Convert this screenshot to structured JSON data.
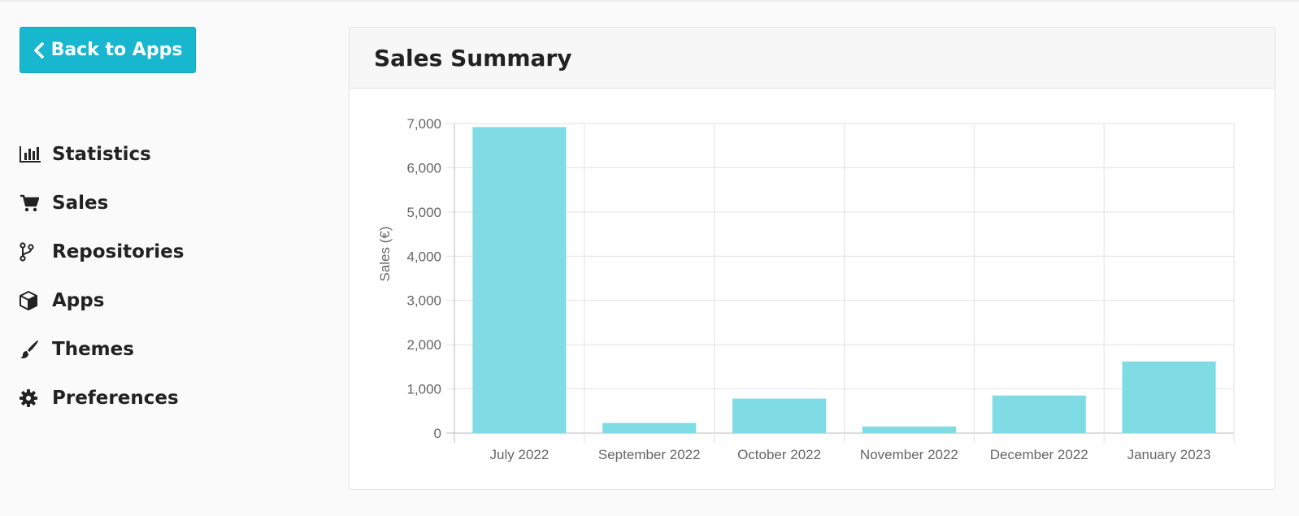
{
  "nav": {
    "back_label": "Back to Apps",
    "items": [
      {
        "label": "Statistics",
        "icon": "bar-chart-icon"
      },
      {
        "label": "Sales",
        "icon": "cart-icon"
      },
      {
        "label": "Repositories",
        "icon": "branch-icon"
      },
      {
        "label": "Apps",
        "icon": "cube-icon"
      },
      {
        "label": "Themes",
        "icon": "brush-icon"
      },
      {
        "label": "Preferences",
        "icon": "gear-icon"
      }
    ]
  },
  "card": {
    "title": "Sales Summary"
  },
  "colors": {
    "accent": "#17b8cf",
    "bar": "#7fdbe4"
  },
  "chart_data": {
    "type": "bar",
    "title": "Sales Summary",
    "xlabel": "",
    "ylabel": "Sales (€)",
    "categories": [
      "July 2022",
      "September 2022",
      "October 2022",
      "November 2022",
      "December 2022",
      "January 2023"
    ],
    "values": [
      6920,
      230,
      780,
      150,
      850,
      1620
    ],
    "ylim": [
      0,
      7000
    ],
    "yticks": [
      0,
      1000,
      2000,
      3000,
      4000,
      5000,
      6000,
      7000
    ],
    "ytick_labels": [
      "0",
      "1,000",
      "2,000",
      "3,000",
      "4,000",
      "5,000",
      "6,000",
      "7,000"
    ],
    "grid": true,
    "legend": "none"
  }
}
